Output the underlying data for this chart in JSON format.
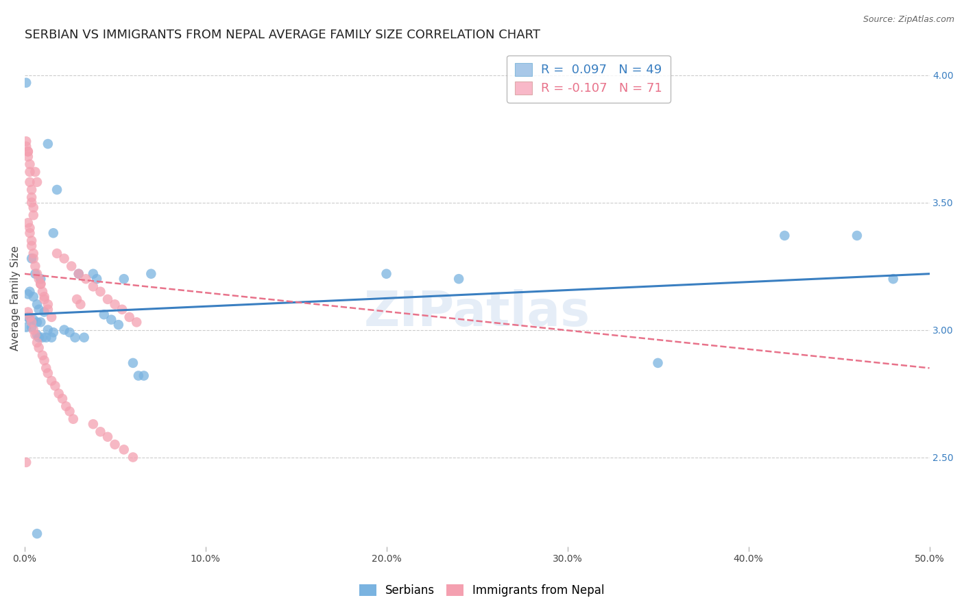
{
  "title": "SERBIAN VS IMMIGRANTS FROM NEPAL AVERAGE FAMILY SIZE CORRELATION CHART",
  "source": "Source: ZipAtlas.com",
  "ylabel": "Average Family Size",
  "right_yticks": [
    2.5,
    3.0,
    3.5,
    4.0
  ],
  "watermark": "ZIPatlas",
  "legend_blue_label": "R =  0.097   N = 49",
  "legend_pink_label": "R = -0.107   N = 71",
  "legend_blue_color": "#a8c8e8",
  "legend_pink_color": "#f8b8c8",
  "blue_line_color": "#3a7fc1",
  "pink_line_color": "#e8728a",
  "scatter_blue_color": "#7ab3e0",
  "scatter_pink_color": "#f4a0b0",
  "blue_scatter": [
    [
      0.001,
      3.97
    ],
    [
      0.013,
      3.73
    ],
    [
      0.018,
      3.55
    ],
    [
      0.016,
      3.38
    ],
    [
      0.004,
      3.28
    ],
    [
      0.006,
      3.22
    ],
    [
      0.009,
      3.2
    ],
    [
      0.003,
      3.15
    ],
    [
      0.002,
      3.14
    ],
    [
      0.005,
      3.13
    ],
    [
      0.007,
      3.1
    ],
    [
      0.008,
      3.08
    ],
    [
      0.011,
      3.07
    ],
    [
      0.002,
      3.05
    ],
    [
      0.003,
      3.04
    ],
    [
      0.005,
      3.04
    ],
    [
      0.007,
      3.03
    ],
    [
      0.009,
      3.03
    ],
    [
      0.001,
      3.01
    ],
    [
      0.004,
      3.01
    ],
    [
      0.013,
      3.0
    ],
    [
      0.016,
      2.99
    ],
    [
      0.022,
      3.0
    ],
    [
      0.025,
      2.99
    ],
    [
      0.03,
      3.22
    ],
    [
      0.04,
      3.2
    ],
    [
      0.044,
      3.06
    ],
    [
      0.048,
      3.04
    ],
    [
      0.052,
      3.02
    ],
    [
      0.06,
      2.87
    ],
    [
      0.063,
      2.82
    ],
    [
      0.066,
      2.82
    ],
    [
      0.007,
      2.98
    ],
    [
      0.008,
      2.97
    ],
    [
      0.01,
      2.97
    ],
    [
      0.012,
      2.97
    ],
    [
      0.015,
      2.97
    ],
    [
      0.028,
      2.97
    ],
    [
      0.033,
      2.97
    ],
    [
      0.038,
      3.22
    ],
    [
      0.055,
      3.2
    ],
    [
      0.07,
      3.22
    ],
    [
      0.2,
      3.22
    ],
    [
      0.24,
      3.2
    ],
    [
      0.35,
      2.87
    ],
    [
      0.42,
      3.37
    ],
    [
      0.46,
      3.37
    ],
    [
      0.48,
      3.2
    ],
    [
      0.007,
      2.2
    ]
  ],
  "pink_scatter": [
    [
      0.001,
      3.72
    ],
    [
      0.002,
      3.7
    ],
    [
      0.002,
      3.68
    ],
    [
      0.003,
      3.65
    ],
    [
      0.003,
      3.62
    ],
    [
      0.003,
      3.58
    ],
    [
      0.004,
      3.55
    ],
    [
      0.004,
      3.52
    ],
    [
      0.004,
      3.5
    ],
    [
      0.005,
      3.48
    ],
    [
      0.005,
      3.45
    ],
    [
      0.002,
      3.42
    ],
    [
      0.003,
      3.4
    ],
    [
      0.003,
      3.38
    ],
    [
      0.004,
      3.35
    ],
    [
      0.004,
      3.33
    ],
    [
      0.005,
      3.3
    ],
    [
      0.005,
      3.28
    ],
    [
      0.006,
      3.25
    ],
    [
      0.007,
      3.22
    ],
    [
      0.008,
      3.2
    ],
    [
      0.009,
      3.18
    ],
    [
      0.01,
      3.15
    ],
    [
      0.011,
      3.13
    ],
    [
      0.013,
      3.1
    ],
    [
      0.002,
      3.07
    ],
    [
      0.003,
      3.05
    ],
    [
      0.004,
      3.03
    ],
    [
      0.005,
      3.0
    ],
    [
      0.006,
      2.98
    ],
    [
      0.007,
      2.95
    ],
    [
      0.008,
      2.93
    ],
    [
      0.01,
      2.9
    ],
    [
      0.011,
      2.88
    ],
    [
      0.012,
      2.85
    ],
    [
      0.013,
      2.83
    ],
    [
      0.015,
      2.8
    ],
    [
      0.017,
      2.78
    ],
    [
      0.019,
      2.75
    ],
    [
      0.021,
      2.73
    ],
    [
      0.023,
      2.7
    ],
    [
      0.025,
      2.68
    ],
    [
      0.027,
      2.65
    ],
    [
      0.029,
      3.12
    ],
    [
      0.031,
      3.1
    ],
    [
      0.038,
      2.63
    ],
    [
      0.042,
      2.6
    ],
    [
      0.046,
      2.58
    ],
    [
      0.05,
      2.55
    ],
    [
      0.055,
      2.53
    ],
    [
      0.06,
      2.5
    ],
    [
      0.001,
      3.74
    ],
    [
      0.002,
      3.7
    ],
    [
      0.018,
      3.3
    ],
    [
      0.022,
      3.28
    ],
    [
      0.026,
      3.25
    ],
    [
      0.03,
      3.22
    ],
    [
      0.034,
      3.2
    ],
    [
      0.038,
      3.17
    ],
    [
      0.042,
      3.15
    ],
    [
      0.046,
      3.12
    ],
    [
      0.05,
      3.1
    ],
    [
      0.054,
      3.08
    ],
    [
      0.058,
      3.05
    ],
    [
      0.062,
      3.03
    ],
    [
      0.001,
      2.48
    ],
    [
      0.006,
      3.62
    ],
    [
      0.007,
      3.58
    ],
    [
      0.009,
      3.18
    ],
    [
      0.011,
      3.12
    ],
    [
      0.013,
      3.08
    ],
    [
      0.015,
      3.05
    ]
  ],
  "xlim": [
    0.0,
    0.5
  ],
  "ylim": [
    2.15,
    4.1
  ],
  "background_color": "#ffffff",
  "grid_color": "#cccccc",
  "tick_label_color_right": "#3a7fc1",
  "title_color": "#222222",
  "title_fontsize": 13,
  "axis_label_fontsize": 11,
  "tick_fontsize": 10,
  "blue_line_endpoints": [
    [
      0.0,
      3.06
    ],
    [
      0.5,
      3.22
    ]
  ],
  "pink_line_endpoints": [
    [
      0.0,
      3.22
    ],
    [
      0.5,
      2.85
    ]
  ]
}
